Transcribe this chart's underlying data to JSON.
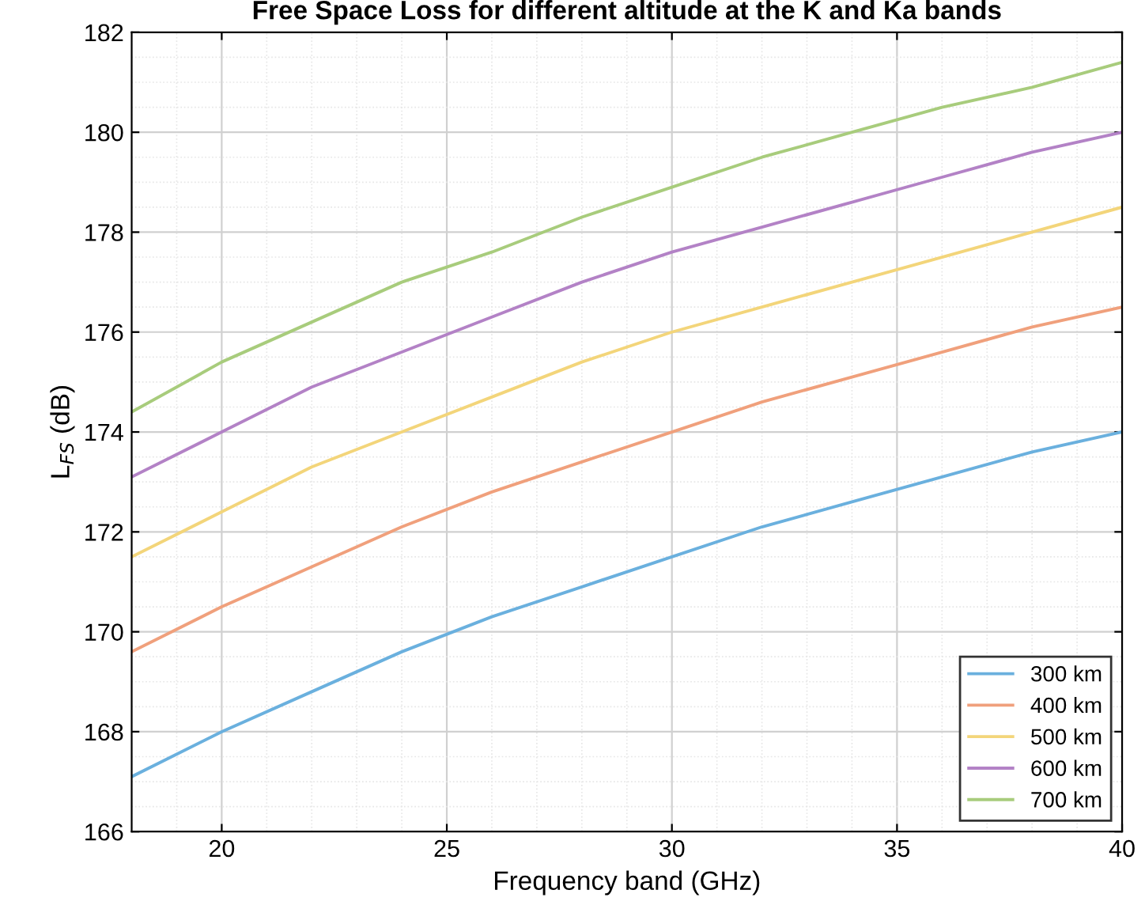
{
  "chart_data": {
    "type": "line",
    "title": "Free Space Loss for different altitude at the K and Ka bands",
    "xlabel": "Frequency band (GHz)",
    "ylabel": "L$_{FS}$ (dB)",
    "x": [
      18,
      20,
      22,
      24,
      26,
      28,
      30,
      32,
      34,
      36,
      38,
      40
    ],
    "series": [
      {
        "name": "300 km",
        "color": "#6ab0de",
        "values": [
          167.1,
          168.0,
          168.8,
          169.6,
          170.3,
          170.9,
          171.5,
          172.1,
          172.6,
          173.1,
          173.6,
          174.0
        ]
      },
      {
        "name": "400 km",
        "color": "#f0a07c",
        "values": [
          169.6,
          170.5,
          171.3,
          172.1,
          172.8,
          173.4,
          174.0,
          174.6,
          175.1,
          175.6,
          176.1,
          176.5
        ]
      },
      {
        "name": "500 km",
        "color": "#f3d57a",
        "values": [
          171.5,
          172.4,
          173.3,
          174.0,
          174.7,
          175.4,
          176.0,
          176.5,
          177.0,
          177.5,
          178.0,
          178.5
        ]
      },
      {
        "name": "600 km",
        "color": "#b382c6",
        "values": [
          173.1,
          174.0,
          174.9,
          175.6,
          176.3,
          177.0,
          177.6,
          178.1,
          178.6,
          179.1,
          179.6,
          180.0
        ]
      },
      {
        "name": "700 km",
        "color": "#a8cc7c",
        "values": [
          174.4,
          175.4,
          176.2,
          177.0,
          177.6,
          178.3,
          178.9,
          179.5,
          180.0,
          180.5,
          180.9,
          181.4
        ]
      }
    ],
    "xlim": [
      18,
      40
    ],
    "xticks": [
      20,
      25,
      30,
      35,
      40
    ],
    "ylim": [
      166,
      182
    ],
    "yticks": [
      166,
      168,
      170,
      172,
      174,
      176,
      178,
      180,
      182
    ],
    "grid": true,
    "legend": "bottom right",
    "marker": "none",
    "line_style": "solid"
  }
}
